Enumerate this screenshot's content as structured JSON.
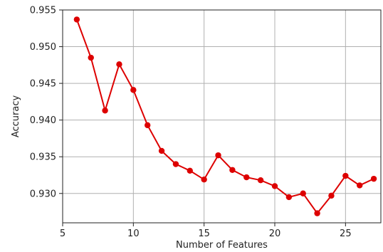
{
  "chart_data": {
    "type": "line",
    "title": "",
    "xlabel": "Number of Features",
    "ylabel": "Accuracy",
    "xlim": [
      5,
      27.5
    ],
    "ylim": [
      0.926,
      0.955
    ],
    "xticks": [
      5,
      10,
      15,
      20,
      25
    ],
    "yticks": [
      0.93,
      0.935,
      0.94,
      0.945,
      0.95,
      0.955
    ],
    "ytick_labels": [
      "0.930",
      "0.935",
      "0.940",
      "0.945",
      "0.950",
      "0.955"
    ],
    "grid": true,
    "series": [
      {
        "color": "#dd0000",
        "marker": "circle",
        "x": [
          6,
          7,
          8,
          9,
          10,
          11,
          12,
          13,
          14,
          15,
          16,
          17,
          18,
          19,
          20,
          21,
          22,
          23,
          24,
          25,
          26,
          27
        ],
        "y": [
          0.9537,
          0.9485,
          0.9413,
          0.9476,
          0.9441,
          0.9393,
          0.9358,
          0.934,
          0.9331,
          0.9319,
          0.9352,
          0.9332,
          0.9322,
          0.9318,
          0.931,
          0.9295,
          0.93,
          0.9273,
          0.9297,
          0.9324,
          0.9311,
          0.932
        ]
      }
    ]
  }
}
